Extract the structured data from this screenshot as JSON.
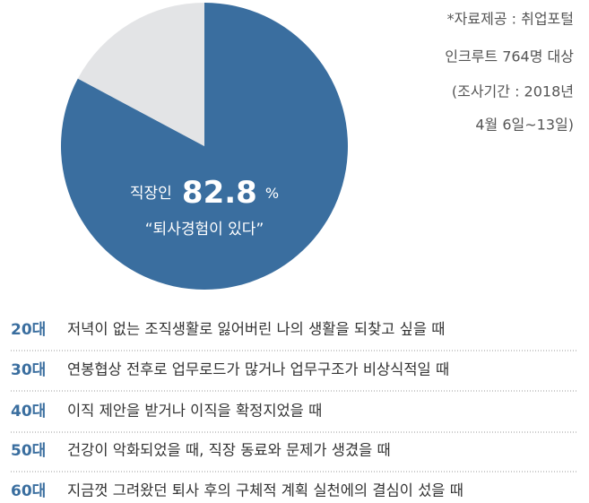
{
  "chart_data": {
    "type": "pie",
    "categories": [
      null,
      null
    ],
    "values": [
      82.8,
      17.2
    ],
    "colors": [
      "#3a6e9f",
      "#e3e4e6"
    ],
    "label_prefix": "직장인",
    "unit": "%",
    "annotation": "“퇴사경험이 있다”"
  },
  "source": [
    "*자료제공 : 취업포털",
    "인크루트 764명 대상",
    "(조사기간 : 2018년",
    "4월 6일~13일)"
  ],
  "list": [
    {
      "age": "20대",
      "text": "저녁이 없는 조직생활로 잃어버린 나의 생활을 되찾고 싶을 때"
    },
    {
      "age": "30대",
      "text": "연봉협상 전후로 업무로드가 많거나 업무구조가 비상식적일 때"
    },
    {
      "age": "40대",
      "text": "이직 제안을 받거나 이직을 확정지었을 때"
    },
    {
      "age": "50대",
      "text": "건강이 악화되었을 때, 직장 동료와 문제가 생겼을 때"
    },
    {
      "age": "60대",
      "text": "지금껏 그려왔던 퇴사 후의 구체적 계획 실천에의 결심이 섰을 때"
    }
  ]
}
